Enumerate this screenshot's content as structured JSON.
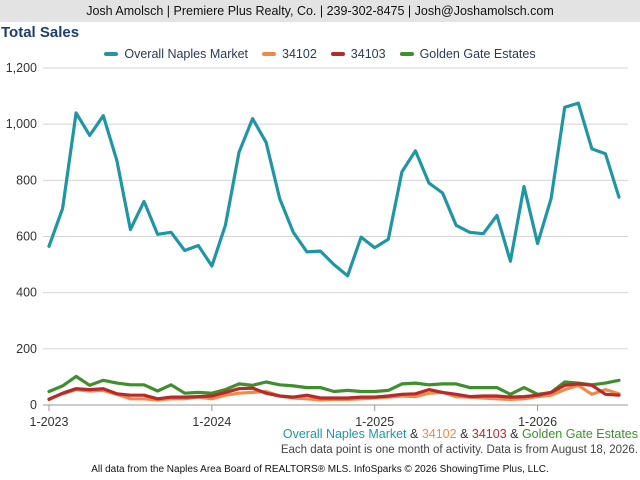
{
  "header": {
    "text": "Josh Amolsch | Premiere Plus Realty, Co. | 239-302-8475 | Josh@Joshamolsch.com"
  },
  "colors": {
    "overall": "#2196a3",
    "zip_34102": "#f0894a",
    "zip_34103": "#b72a2a",
    "golden_gate": "#3f8f2f",
    "grid": "#d4d4d4",
    "axis_text": "#333333",
    "title": "#1c3d6e"
  },
  "footer": {
    "series_caption": {
      "overall": "Overall Naples Market",
      "amp1": " & ",
      "zip_34102": "34102",
      "amp2": " & ",
      "zip_34103": "34103",
      "amp3": " & ",
      "golden_gate": "Golden Gate Estates"
    },
    "note": "Each data point is one month of activity. Data is from August 18, 2026.",
    "source": "All data from the Naples Area Board of REALTORS® MLS. InfoSparks © 2026 ShowingTime Plus, LLC."
  },
  "chart_data": {
    "type": "line",
    "title": "Total Sales",
    "x": [
      "2023-01",
      "2023-02",
      "2023-03",
      "2023-04",
      "2023-05",
      "2023-06",
      "2023-07",
      "2023-08",
      "2023-09",
      "2023-10",
      "2023-11",
      "2023-12",
      "2024-01",
      "2024-02",
      "2024-03",
      "2024-04",
      "2024-05",
      "2024-06",
      "2024-07",
      "2024-08",
      "2024-09",
      "2024-10",
      "2024-11",
      "2024-12",
      "2025-01",
      "2025-02",
      "2025-03",
      "2025-04",
      "2025-05",
      "2025-06",
      "2025-07",
      "2025-08",
      "2025-09",
      "2025-10",
      "2025-11",
      "2025-12",
      "2026-01",
      "2026-02",
      "2026-03",
      "2026-04",
      "2026-05",
      "2026-06",
      "2026-07"
    ],
    "x_tick_labels": [
      "1-2023",
      "1-2024",
      "1-2025",
      "1-2026"
    ],
    "x_tick_positions": [
      "2023-01",
      "2024-01",
      "2025-01",
      "2026-01"
    ],
    "ylim": [
      0,
      1200
    ],
    "y_ticks": [
      0,
      200,
      400,
      600,
      800,
      1000,
      1200
    ],
    "y_tick_labels": [
      "0",
      "200",
      "400",
      "600",
      "800",
      "1,000",
      "1,200"
    ],
    "grid": true,
    "legend_position": "top",
    "series": [
      {
        "name": "Overall Naples Market",
        "color_key": "overall",
        "values": [
          565,
          700,
          1040,
          960,
          1030,
          870,
          625,
          725,
          608,
          615,
          550,
          568,
          495,
          640,
          900,
          1020,
          935,
          735,
          615,
          545,
          548,
          500,
          460,
          598,
          560,
          590,
          830,
          905,
          790,
          755,
          640,
          615,
          610,
          675,
          512,
          778,
          575,
          735,
          1060,
          1075,
          912,
          895,
          740
        ]
      },
      {
        "name": "34102",
        "color_key": "zip_34102",
        "values": [
          22,
          40,
          55,
          50,
          52,
          38,
          22,
          22,
          18,
          22,
          22,
          28,
          22,
          35,
          42,
          45,
          48,
          32,
          25,
          22,
          18,
          20,
          20,
          22,
          25,
          28,
          32,
          30,
          42,
          45,
          30,
          28,
          25,
          22,
          20,
          22,
          30,
          35,
          55,
          70,
          38,
          55,
          40
        ]
      },
      {
        "name": "34103",
        "color_key": "zip_34103",
        "values": [
          20,
          42,
          58,
          55,
          58,
          40,
          35,
          35,
          22,
          28,
          28,
          30,
          32,
          45,
          58,
          60,
          42,
          32,
          28,
          35,
          25,
          25,
          25,
          28,
          28,
          32,
          38,
          40,
          55,
          45,
          38,
          30,
          32,
          32,
          28,
          30,
          35,
          45,
          70,
          75,
          70,
          38,
          35
        ]
      },
      {
        "name": "Golden Gate Estates",
        "color_key": "golden_gate",
        "values": [
          48,
          68,
          102,
          70,
          88,
          78,
          72,
          72,
          50,
          72,
          42,
          45,
          42,
          55,
          75,
          70,
          82,
          72,
          68,
          62,
          62,
          48,
          52,
          48,
          48,
          52,
          75,
          78,
          72,
          75,
          75,
          62,
          62,
          62,
          38,
          62,
          38,
          45,
          82,
          78,
          72,
          78,
          88
        ]
      }
    ]
  }
}
